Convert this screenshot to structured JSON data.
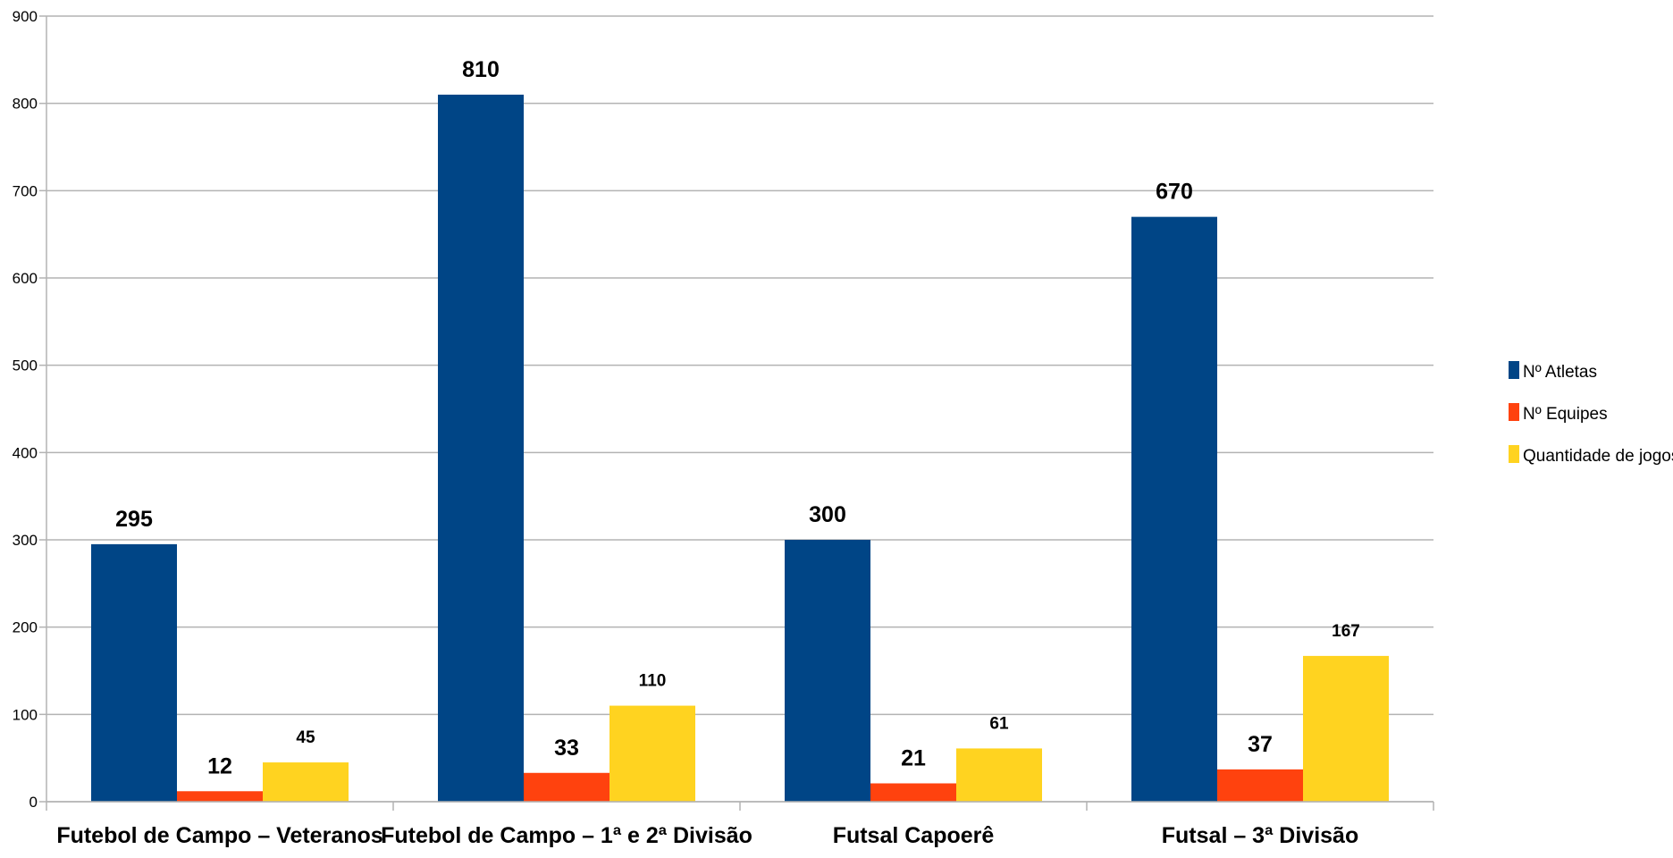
{
  "chart_data": {
    "type": "bar",
    "categories": [
      "Futebol de Campo – Veteranos",
      "Futebol de Campo – 1ª e 2ª Divisão",
      "Futsal Capoerê",
      "Futsal – 3ª Divisão"
    ],
    "series": [
      {
        "name": "Nº Atletas",
        "values": [
          295,
          810,
          300,
          670
        ],
        "color": "#004586"
      },
      {
        "name": "Nº Equipes",
        "values": [
          12,
          33,
          21,
          37
        ],
        "color": "#ff420e"
      },
      {
        "name": "Quantidade de jogos",
        "values": [
          45,
          110,
          61,
          167
        ],
        "color": "#ffd320"
      }
    ],
    "ylim": [
      0,
      900
    ],
    "yticks": [
      0,
      100,
      200,
      300,
      400,
      500,
      600,
      700,
      800,
      900
    ],
    "grid": true,
    "legend": "right",
    "title": "",
    "xlabel": "",
    "ylabel": ""
  }
}
